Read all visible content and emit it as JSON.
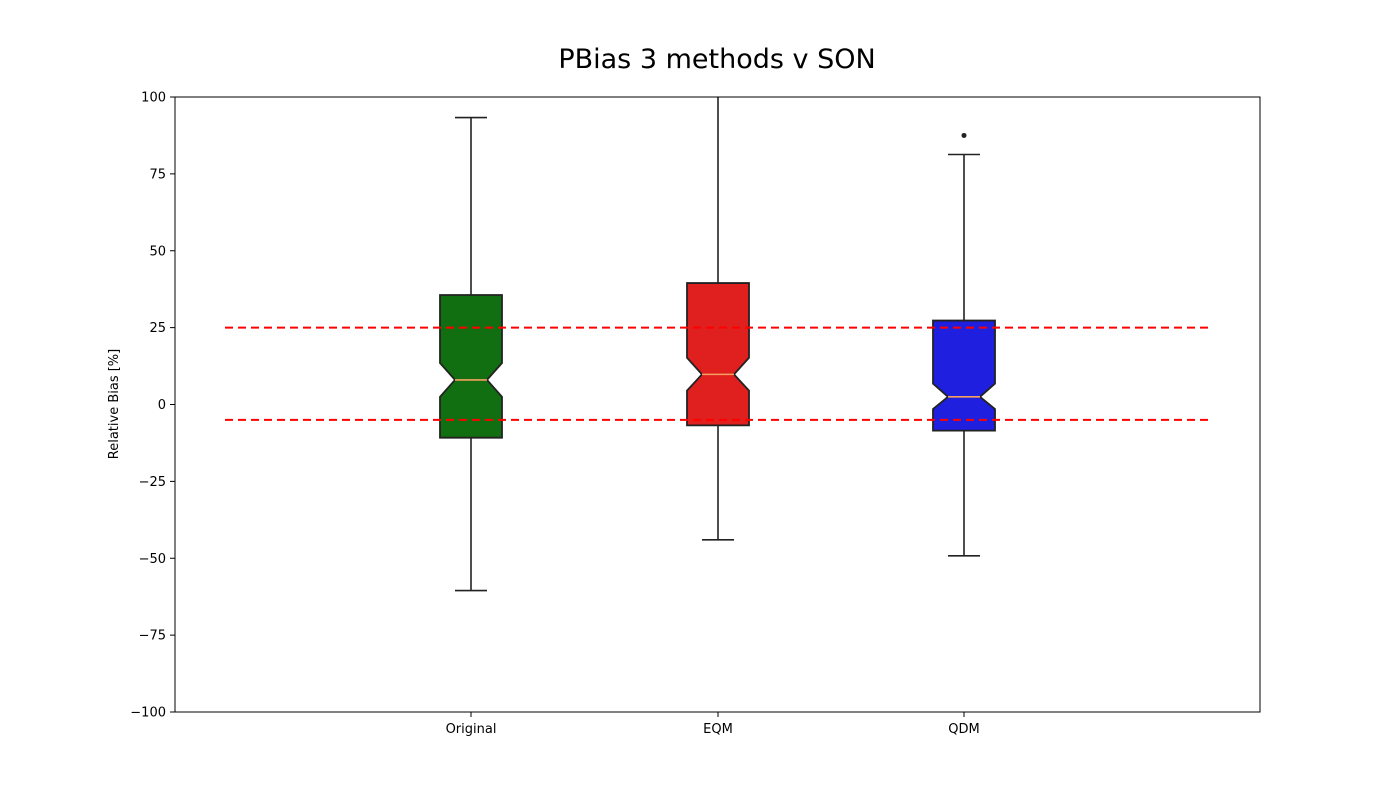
{
  "chart_data": {
    "type": "box",
    "title": "PBias 3 methods v SON",
    "ylabel": "Relative Bias [%]",
    "xlabel": "",
    "ylim": [
      -100,
      100
    ],
    "yticks": [
      -100,
      -75,
      -50,
      -25,
      0,
      25,
      50,
      75,
      100
    ],
    "ytick_labels": [
      "−100",
      "−75",
      "−50",
      "−25",
      "0",
      "25",
      "50",
      "75",
      "100"
    ],
    "grid": false,
    "notched": true,
    "reference_lines": [
      {
        "y": 25,
        "color": "#ff0000",
        "style": "dashed"
      },
      {
        "y": -5,
        "color": "#ff0000",
        "style": "dashed"
      }
    ],
    "categories": [
      "Original",
      "EQM",
      "QDM"
    ],
    "boxes": [
      {
        "name": "Original",
        "color": "#116f11",
        "whisker_low": -60.5,
        "q1": -10.8,
        "median": 8.0,
        "q3": 35.6,
        "whisker_high": 93.3,
        "notch_low": 2.5,
        "notch_high": 13.5,
        "outliers": []
      },
      {
        "name": "EQM",
        "color": "#e01f1f",
        "whisker_low": -44.0,
        "q1": -6.8,
        "median": 9.8,
        "q3": 39.5,
        "whisker_high": 100,
        "notch_low": 4.5,
        "notch_high": 15.2,
        "outliers": []
      },
      {
        "name": "QDM",
        "color": "#1f1fe0",
        "whisker_low": -49.2,
        "q1": -8.5,
        "median": 2.5,
        "q3": 27.3,
        "whisker_high": 81.3,
        "notch_low": -1.5,
        "notch_high": 6.8,
        "outliers": [
          87.5
        ]
      }
    ],
    "median_color": "#f5a060"
  }
}
